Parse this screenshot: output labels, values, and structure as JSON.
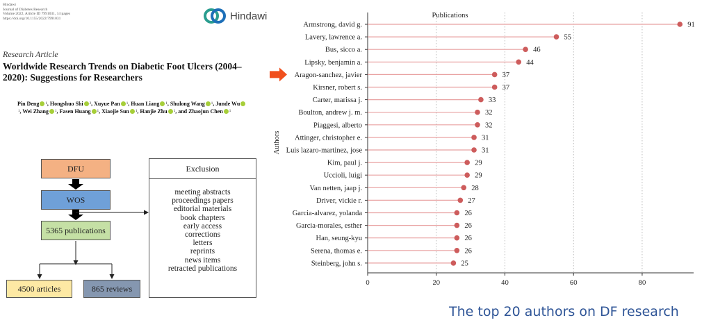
{
  "header": {
    "journal_lines": [
      "Hindawi",
      "Journal of Diabetes Research",
      "Volume 2022, Article ID 7991031, 14 pages",
      "https://doi.org/10.1155/2022/7991031"
    ],
    "brand": "Hindawi"
  },
  "article": {
    "type": "Research Article",
    "title": "Worldwide Research Trends on Diabetic Foot Ulcers (2004–2020): Suggestions for Researchers",
    "authors": [
      {
        "name": "Pin Deng",
        "sup": "1"
      },
      {
        "name": "Hongshuo Shi",
        "sup": "2"
      },
      {
        "name": "Xuyue Pan",
        "sup": "1"
      },
      {
        "name": "Huan Liang",
        "sup": "1"
      },
      {
        "name": "Shulong Wang",
        "sup": "1"
      },
      {
        "name": "Junde Wu",
        "sup": "1"
      },
      {
        "name": "Wei Zhang",
        "sup": "1"
      },
      {
        "name": "Fasen Huang",
        "sup": "1"
      },
      {
        "name": "Xiaojie Sun",
        "sup": "1"
      },
      {
        "name": "Hanjie Zhu",
        "sup": "1"
      },
      {
        "name": "and Zhaojun Chen",
        "sup": "1"
      }
    ]
  },
  "flowchart": {
    "dfu": "DFU",
    "wos": "WOS",
    "publications": "5365 publications",
    "articles": "4500 articles",
    "reviews": "865 reviews",
    "exclusion_title": "Exclusion",
    "exclusion_items": [
      "meeting abstracts",
      "proceedings papers",
      "editorial materials",
      "book chapters",
      "early access",
      "corrections",
      "letters",
      "reprints",
      "news items",
      "retracted publications"
    ],
    "colors": {
      "dfu": "#f4b183",
      "wos": "#6fa0d8",
      "publications": "#c5e0a5",
      "articles": "#fde9a4",
      "reviews": "#8597b0"
    }
  },
  "chart_data": {
    "type": "lollipop",
    "title": "Publications",
    "ylabel": "Authors",
    "xlabel": "",
    "xlim": [
      0,
      95
    ],
    "xticks": [
      0,
      20,
      40,
      60,
      80
    ],
    "highlighted": "Aragon-sanchez, javier",
    "categories": [
      "Armstrong, david g.",
      "Lavery, lawrence a.",
      "Bus, sicco a.",
      "Lipsky, benjamin a.",
      "Aragon-sanchez, javier",
      "Kirsner, robert s.",
      "Carter, marissa j.",
      "Boulton, andrew j. m.",
      "Piaggesi, alberto",
      "Attinger, christopher e.",
      "Luis lazaro-martinez, jose",
      "Kim, paul j.",
      "Uccioli, luigi",
      "Van netten, jaap j.",
      "Driver, vickie r.",
      "Garcia-alvarez, yolanda",
      "Garcia-morales, esther",
      "Han, seung-kyu",
      "Serena, thomas e.",
      "Steinberg, john s."
    ],
    "values": [
      91,
      55,
      46,
      44,
      37,
      37,
      33,
      32,
      32,
      31,
      31,
      29,
      29,
      28,
      27,
      26,
      26,
      26,
      26,
      25
    ],
    "colors": {
      "line": "#e8a0a0",
      "dot": "#cd5c5c",
      "arrow": "#f0501e"
    }
  },
  "caption": "The top 20 authors on DF research"
}
